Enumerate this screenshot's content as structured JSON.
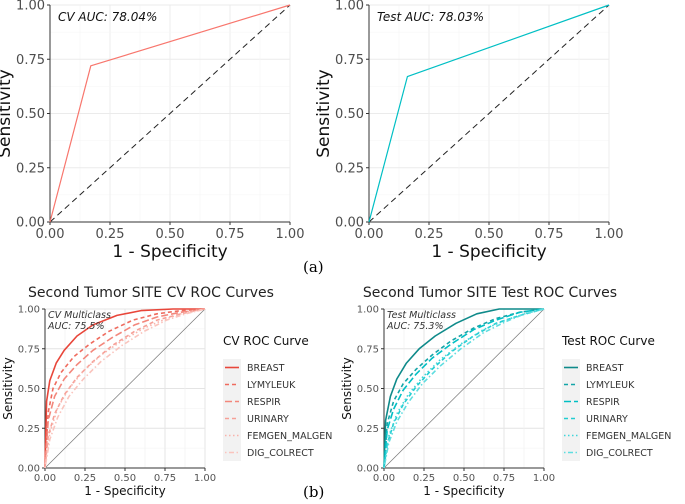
{
  "panel_labels": {
    "a": "(a)",
    "b": "(b)"
  },
  "chart_data": [
    {
      "type": "line",
      "title": "",
      "annotation": "CV AUC: 78.04%",
      "xlabel": "1 - Specificity",
      "ylabel": "Sensitivity",
      "xlim": [
        0,
        1
      ],
      "ylim": [
        0,
        1
      ],
      "xticks": [
        "0.00",
        "0.25",
        "0.50",
        "0.75",
        "1.00"
      ],
      "yticks": [
        "0.00",
        "0.25",
        "0.50",
        "0.75",
        "1.00"
      ],
      "color": "#f8766d",
      "series": [
        {
          "name": "CV",
          "points": [
            [
              0,
              0
            ],
            [
              0.17,
              0.72
            ],
            [
              1,
              1
            ]
          ]
        }
      ]
    },
    {
      "type": "line",
      "title": "",
      "annotation": "Test AUC: 78.03%",
      "xlabel": "1 - Specificity",
      "ylabel": "Sensitivity",
      "xlim": [
        0,
        1
      ],
      "ylim": [
        0,
        1
      ],
      "xticks": [
        "0.00",
        "0.25",
        "0.50",
        "0.75",
        "1.00"
      ],
      "yticks": [
        "0.00",
        "0.25",
        "0.50",
        "0.75",
        "1.00"
      ],
      "color": "#00bfc4",
      "series": [
        {
          "name": "Test",
          "points": [
            [
              0,
              0
            ],
            [
              0.16,
              0.67
            ],
            [
              1,
              1
            ]
          ]
        }
      ]
    },
    {
      "type": "line",
      "title": "Second Tumor SITE CV ROC Curves",
      "annotation": [
        "CV Multiclass",
        "AUC: 75.5%"
      ],
      "xlabel": "1 - Specificity",
      "ylabel": "Sensitivity",
      "xlim": [
        0,
        1
      ],
      "ylim": [
        0,
        1
      ],
      "xticks": [
        "0.00",
        "0.25",
        "0.50",
        "0.75",
        "1.00"
      ],
      "yticks": [
        "0.00",
        "0.25",
        "0.50",
        "0.75",
        "1.00"
      ],
      "legend_title": "CV ROC Curve",
      "legend_position": "right",
      "series": [
        {
          "name": "BREAST",
          "color": "#e8463a",
          "dash": "solid",
          "points": [
            [
              0,
              0
            ],
            [
              0.01,
              0.42
            ],
            [
              0.03,
              0.55
            ],
            [
              0.07,
              0.66
            ],
            [
              0.12,
              0.74
            ],
            [
              0.2,
              0.83
            ],
            [
              0.3,
              0.9
            ],
            [
              0.45,
              0.96
            ],
            [
              0.6,
              0.99
            ],
            [
              0.8,
              1
            ],
            [
              1,
              1
            ]
          ]
        },
        {
          "name": "LYMYLEUK",
          "color": "#ef6b5e",
          "dash": "dashed",
          "points": [
            [
              0,
              0
            ],
            [
              0.02,
              0.35
            ],
            [
              0.05,
              0.5
            ],
            [
              0.1,
              0.6
            ],
            [
              0.18,
              0.7
            ],
            [
              0.28,
              0.78
            ],
            [
              0.4,
              0.86
            ],
            [
              0.55,
              0.93
            ],
            [
              0.7,
              0.97
            ],
            [
              0.85,
              0.99
            ],
            [
              1,
              1
            ]
          ]
        },
        {
          "name": "RESPIR",
          "color": "#f3877c",
          "dash": "longdash",
          "points": [
            [
              0,
              0
            ],
            [
              0.02,
              0.3
            ],
            [
              0.06,
              0.45
            ],
            [
              0.12,
              0.56
            ],
            [
              0.2,
              0.65
            ],
            [
              0.3,
              0.74
            ],
            [
              0.42,
              0.82
            ],
            [
              0.56,
              0.9
            ],
            [
              0.7,
              0.95
            ],
            [
              0.85,
              0.98
            ],
            [
              1,
              1
            ]
          ]
        },
        {
          "name": "URINARY",
          "color": "#f6a097",
          "dash": "dashed",
          "points": [
            [
              0,
              0
            ],
            [
              0.02,
              0.2
            ],
            [
              0.06,
              0.34
            ],
            [
              0.12,
              0.46
            ],
            [
              0.2,
              0.57
            ],
            [
              0.3,
              0.67
            ],
            [
              0.42,
              0.77
            ],
            [
              0.56,
              0.86
            ],
            [
              0.7,
              0.93
            ],
            [
              0.85,
              0.97
            ],
            [
              1,
              1
            ]
          ]
        },
        {
          "name": "FEMGEN_MALGEN",
          "color": "#f8b3ab",
          "dash": "dotted",
          "points": [
            [
              0,
              0
            ],
            [
              0.03,
              0.22
            ],
            [
              0.08,
              0.38
            ],
            [
              0.15,
              0.5
            ],
            [
              0.24,
              0.61
            ],
            [
              0.35,
              0.71
            ],
            [
              0.48,
              0.8
            ],
            [
              0.62,
              0.88
            ],
            [
              0.76,
              0.94
            ],
            [
              0.88,
              0.98
            ],
            [
              1,
              1
            ]
          ]
        },
        {
          "name": "DIG_COLRECT",
          "color": "#fac4bd",
          "dash": "dotdash",
          "points": [
            [
              0,
              0
            ],
            [
              0.03,
              0.18
            ],
            [
              0.08,
              0.32
            ],
            [
              0.15,
              0.45
            ],
            [
              0.24,
              0.56
            ],
            [
              0.35,
              0.67
            ],
            [
              0.48,
              0.77
            ],
            [
              0.62,
              0.86
            ],
            [
              0.76,
              0.93
            ],
            [
              0.88,
              0.97
            ],
            [
              1,
              1
            ]
          ]
        }
      ]
    },
    {
      "type": "line",
      "title": "Second Tumor SITE Test ROC Curves",
      "annotation": [
        "Test Multiclass",
        "AUC: 75.3%"
      ],
      "xlabel": "1 - Specificity",
      "ylabel": "Sensitivity",
      "xlim": [
        0,
        1
      ],
      "ylim": [
        0,
        1
      ],
      "xticks": [
        "0.00",
        "0.25",
        "0.50",
        "0.75",
        "1.00"
      ],
      "yticks": [
        "0.00",
        "0.25",
        "0.50",
        "0.75",
        "1.00"
      ],
      "legend_title": "Test ROC Curve",
      "legend_position": "right",
      "series": [
        {
          "name": "BREAST",
          "color": "#0f8a8a",
          "dash": "solid",
          "points": [
            [
              0,
              0
            ],
            [
              0.01,
              0.3
            ],
            [
              0.04,
              0.45
            ],
            [
              0.08,
              0.56
            ],
            [
              0.14,
              0.66
            ],
            [
              0.22,
              0.75
            ],
            [
              0.32,
              0.83
            ],
            [
              0.45,
              0.91
            ],
            [
              0.58,
              0.97
            ],
            [
              0.72,
              1
            ],
            [
              1,
              1
            ]
          ]
        },
        {
          "name": "LYMYLEUK",
          "color": "#14a5a8",
          "dash": "dashed",
          "points": [
            [
              0,
              0
            ],
            [
              0.02,
              0.28
            ],
            [
              0.06,
              0.42
            ],
            [
              0.12,
              0.53
            ],
            [
              0.2,
              0.62
            ],
            [
              0.3,
              0.71
            ],
            [
              0.42,
              0.8
            ],
            [
              0.56,
              0.88
            ],
            [
              0.7,
              0.94
            ],
            [
              0.85,
              0.98
            ],
            [
              1,
              1
            ]
          ]
        },
        {
          "name": "RESPIR",
          "color": "#00bfc4",
          "dash": "longdash",
          "points": [
            [
              0,
              0
            ],
            [
              0.02,
              0.24
            ],
            [
              0.06,
              0.37
            ],
            [
              0.12,
              0.49
            ],
            [
              0.2,
              0.59
            ],
            [
              0.3,
              0.69
            ],
            [
              0.42,
              0.78
            ],
            [
              0.56,
              0.87
            ],
            [
              0.7,
              0.93
            ],
            [
              0.85,
              0.98
            ],
            [
              1,
              1
            ]
          ]
        },
        {
          "name": "URINARY",
          "color": "#22cdd1",
          "dash": "dashed",
          "points": [
            [
              0,
              0
            ],
            [
              0.02,
              0.15
            ],
            [
              0.06,
              0.28
            ],
            [
              0.12,
              0.4
            ],
            [
              0.2,
              0.51
            ],
            [
              0.3,
              0.62
            ],
            [
              0.42,
              0.73
            ],
            [
              0.56,
              0.83
            ],
            [
              0.7,
              0.91
            ],
            [
              0.85,
              0.96
            ],
            [
              1,
              1
            ]
          ]
        },
        {
          "name": "FEMGEN_MALGEN",
          "color": "#3fd6da",
          "dash": "dotted",
          "points": [
            [
              0,
              0
            ],
            [
              0.03,
              0.2
            ],
            [
              0.08,
              0.34
            ],
            [
              0.15,
              0.46
            ],
            [
              0.24,
              0.57
            ],
            [
              0.35,
              0.68
            ],
            [
              0.48,
              0.78
            ],
            [
              0.62,
              0.87
            ],
            [
              0.76,
              0.93
            ],
            [
              0.88,
              0.97
            ],
            [
              1,
              1
            ]
          ]
        },
        {
          "name": "DIG_COLRECT",
          "color": "#5fdde0",
          "dash": "dotdash",
          "points": [
            [
              0,
              0
            ],
            [
              0.03,
              0.16
            ],
            [
              0.08,
              0.29
            ],
            [
              0.15,
              0.41
            ],
            [
              0.24,
              0.53
            ],
            [
              0.35,
              0.64
            ],
            [
              0.48,
              0.75
            ],
            [
              0.62,
              0.85
            ],
            [
              0.76,
              0.92
            ],
            [
              0.88,
              0.97
            ],
            [
              1,
              1
            ]
          ]
        }
      ]
    }
  ]
}
